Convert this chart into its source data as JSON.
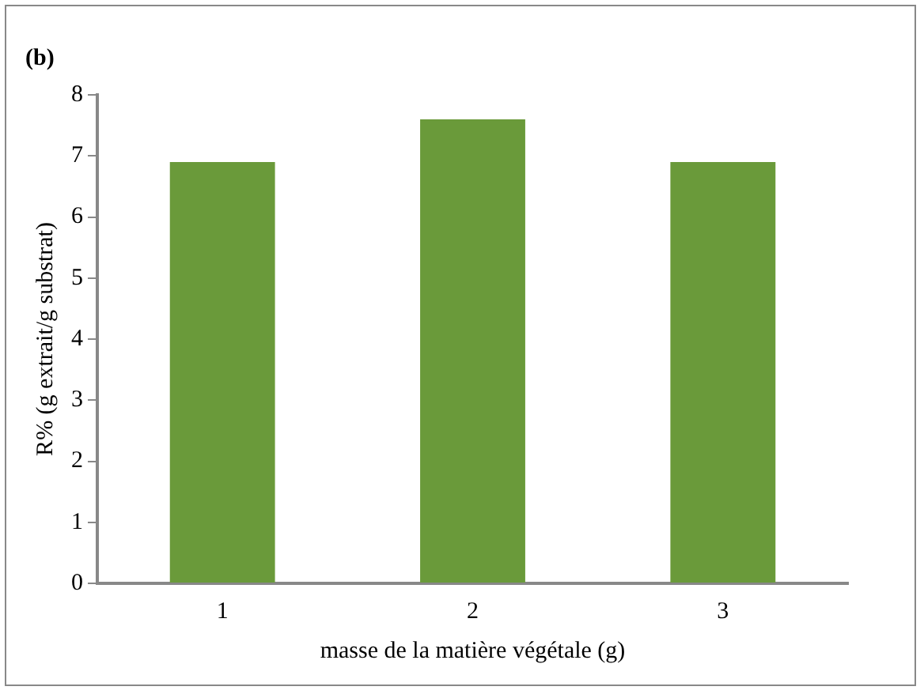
{
  "chart_data": {
    "type": "bar",
    "title": "(b)",
    "xlabel": "masse de la matière végétale (g)",
    "ylabel": "R% (g extrait/g substrat)",
    "categories": [
      "1",
      "2",
      "3"
    ],
    "values": [
      6.9,
      7.6,
      6.9
    ],
    "color": "#6a9a3a",
    "ylim": [
      0,
      8
    ],
    "yticks": [
      0,
      1,
      2,
      3,
      4,
      5,
      6,
      7,
      8
    ],
    "grid": false,
    "legend": false
  }
}
